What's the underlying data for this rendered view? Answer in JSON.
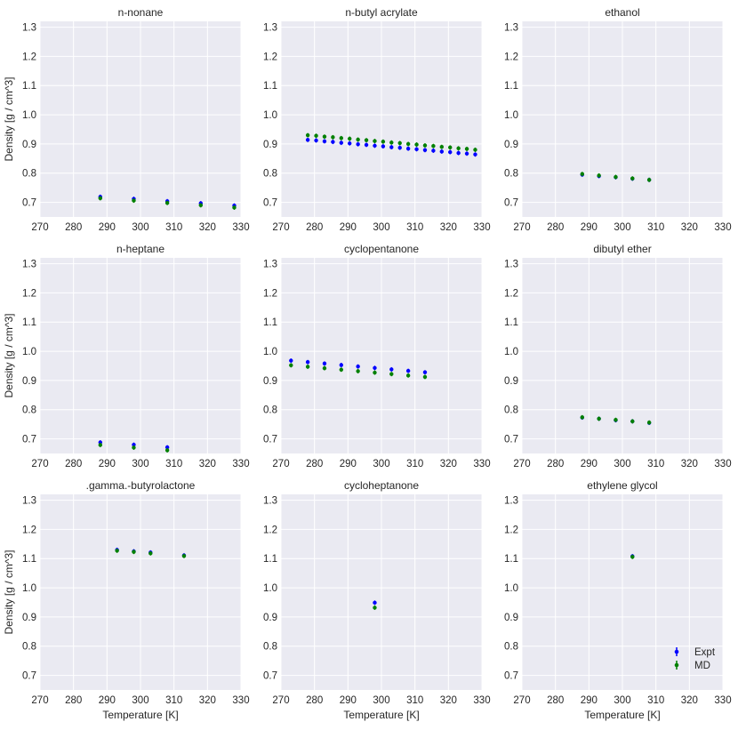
{
  "chart_data": {
    "type": "scatter",
    "shared": {
      "xlabel": "Temperature [K]",
      "ylabel": "Density [g / cm^3]",
      "xlim": [
        270,
        330
      ],
      "ylim": [
        0.65,
        1.32
      ],
      "xticks": [
        "270",
        "280",
        "290",
        "300",
        "310",
        "320",
        "330"
      ],
      "yticks": [
        "0.7",
        "0.8",
        "0.9",
        "1.0",
        "1.1",
        "1.2",
        "1.3"
      ],
      "grid": true,
      "legend_position": "lower-right of last panel",
      "series_styles": [
        {
          "name": "Expt",
          "color": "#0000ff"
        },
        {
          "name": "MD",
          "color": "#008000"
        }
      ]
    },
    "panels": [
      {
        "title": "n-nonane",
        "series": [
          {
            "name": "Expt",
            "x": [
              288,
              298,
              308,
              318,
              328
            ],
            "y": [
              0.719,
              0.712,
              0.704,
              0.697,
              0.689
            ]
          },
          {
            "name": "MD",
            "x": [
              288,
              298,
              308,
              318,
              328
            ],
            "y": [
              0.714,
              0.706,
              0.698,
              0.69,
              0.682
            ]
          }
        ]
      },
      {
        "title": "n-butyl acrylate",
        "series": [
          {
            "name": "Expt",
            "x": [
              278,
              280.5,
              283,
              285.5,
              288,
              290.5,
              293,
              295.5,
              298,
              300.5,
              303,
              305.5,
              308,
              310.5,
              313,
              315.5,
              318,
              320.5,
              323,
              325.5,
              328
            ],
            "y": [
              0.914,
              0.912,
              0.909,
              0.907,
              0.904,
              0.902,
              0.899,
              0.897,
              0.894,
              0.892,
              0.889,
              0.887,
              0.884,
              0.882,
              0.879,
              0.877,
              0.874,
              0.872,
              0.869,
              0.867,
              0.864
            ]
          },
          {
            "name": "MD",
            "x": [
              278,
              280.5,
              283,
              285.5,
              288,
              290.5,
              293,
              295.5,
              298,
              300.5,
              303,
              305.5,
              308,
              310.5,
              313,
              315.5,
              318,
              320.5,
              323,
              325.5,
              328
            ],
            "y": [
              0.93,
              0.928,
              0.925,
              0.923,
              0.92,
              0.918,
              0.915,
              0.913,
              0.91,
              0.908,
              0.905,
              0.903,
              0.9,
              0.898,
              0.895,
              0.893,
              0.89,
              0.888,
              0.885,
              0.883,
              0.88
            ]
          }
        ]
      },
      {
        "title": "ethanol",
        "series": [
          {
            "name": "Expt",
            "x": [
              288,
              293,
              298,
              303,
              308
            ],
            "y": [
              0.795,
              0.79,
              0.786,
              0.781,
              0.777
            ]
          },
          {
            "name": "MD",
            "x": [
              288,
              293,
              298,
              303,
              308
            ],
            "y": [
              0.797,
              0.792,
              0.787,
              0.782,
              0.777
            ]
          }
        ]
      },
      {
        "title": "n-heptane",
        "series": [
          {
            "name": "Expt",
            "x": [
              288,
              298,
              308
            ],
            "y": [
              0.688,
              0.68,
              0.671
            ]
          },
          {
            "name": "MD",
            "x": [
              288,
              298,
              308
            ],
            "y": [
              0.679,
              0.67,
              0.661
            ]
          }
        ]
      },
      {
        "title": "cyclopentanone",
        "series": [
          {
            "name": "Expt",
            "x": [
              273,
              278,
              283,
              288,
              293,
              298,
              303,
              308,
              313
            ],
            "y": [
              0.968,
              0.963,
              0.958,
              0.953,
              0.948,
              0.943,
              0.938,
              0.933,
              0.928
            ]
          },
          {
            "name": "MD",
            "x": [
              273,
              278,
              283,
              288,
              293,
              298,
              303,
              308,
              313
            ],
            "y": [
              0.952,
              0.947,
              0.942,
              0.937,
              0.932,
              0.927,
              0.922,
              0.917,
              0.912
            ]
          }
        ]
      },
      {
        "title": "dibutyl ether",
        "series": [
          {
            "name": "Expt",
            "x": [
              288,
              293,
              298,
              303,
              308
            ],
            "y": [
              0.773,
              0.769,
              0.764,
              0.76,
              0.755
            ]
          },
          {
            "name": "MD",
            "x": [
              288,
              293,
              298,
              303,
              308
            ],
            "y": [
              0.774,
              0.769,
              0.765,
              0.76,
              0.756
            ]
          }
        ]
      },
      {
        "title": ".gamma.-butyrolactone",
        "series": [
          {
            "name": "Expt",
            "x": [
              293,
              298,
              303,
              313
            ],
            "y": [
              1.13,
              1.125,
              1.121,
              1.111
            ]
          },
          {
            "name": "MD",
            "x": [
              293,
              298,
              303,
              313
            ],
            "y": [
              1.127,
              1.123,
              1.118,
              1.109
            ]
          }
        ]
      },
      {
        "title": "cycloheptanone",
        "series": [
          {
            "name": "Expt",
            "x": [
              298
            ],
            "y": [
              0.949
            ]
          },
          {
            "name": "MD",
            "x": [
              298
            ],
            "y": [
              0.932
            ]
          }
        ]
      },
      {
        "title": "ethylene glycol",
        "series": [
          {
            "name": "Expt",
            "x": [
              303
            ],
            "y": [
              1.108
            ]
          },
          {
            "name": "MD",
            "x": [
              303
            ],
            "y": [
              1.106
            ]
          }
        ]
      }
    ]
  }
}
